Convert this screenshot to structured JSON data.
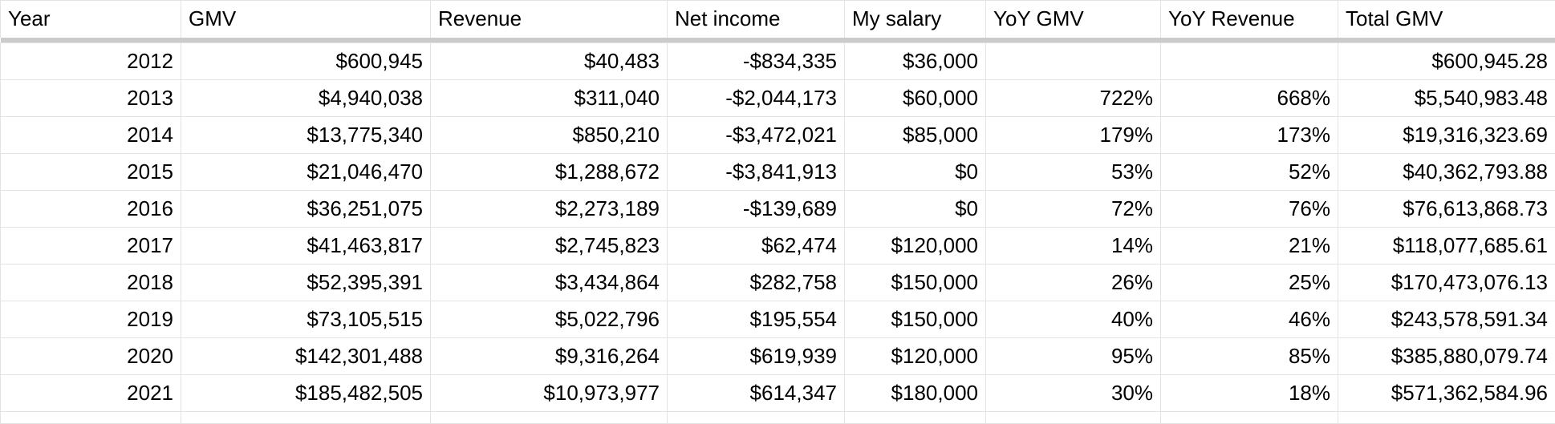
{
  "table": {
    "headers": [
      "Year",
      "GMV",
      "Revenue",
      "Net income",
      "My salary",
      "YoY GMV",
      "YoY Revenue",
      "Total GMV"
    ],
    "rows": [
      [
        "2012",
        "$600,945",
        "$40,483",
        "-$834,335",
        "$36,000",
        "",
        "",
        "$600,945.28"
      ],
      [
        "2013",
        "$4,940,038",
        "$311,040",
        "-$2,044,173",
        "$60,000",
        "722%",
        "668%",
        "$5,540,983.48"
      ],
      [
        "2014",
        "$13,775,340",
        "$850,210",
        "-$3,472,021",
        "$85,000",
        "179%",
        "173%",
        "$19,316,323.69"
      ],
      [
        "2015",
        "$21,046,470",
        "$1,288,672",
        "-$3,841,913",
        "$0",
        "53%",
        "52%",
        "$40,362,793.88"
      ],
      [
        "2016",
        "$36,251,075",
        "$2,273,189",
        "-$139,689",
        "$0",
        "72%",
        "76%",
        "$76,613,868.73"
      ],
      [
        "2017",
        "$41,463,817",
        "$2,745,823",
        "$62,474",
        "$120,000",
        "14%",
        "21%",
        "$118,077,685.61"
      ],
      [
        "2018",
        "$52,395,391",
        "$3,434,864",
        "$282,758",
        "$150,000",
        "26%",
        "25%",
        "$170,473,076.13"
      ],
      [
        "2019",
        "$73,105,515",
        "$5,022,796",
        "$195,554",
        "$150,000",
        "40%",
        "46%",
        "$243,578,591.34"
      ],
      [
        "2020",
        "$142,301,488",
        "$9,316,264",
        "$619,939",
        "$120,000",
        "95%",
        "85%",
        "$385,880,079.74"
      ],
      [
        "2021",
        "$185,482,505",
        "$10,973,977",
        "$614,347",
        "$180,000",
        "30%",
        "18%",
        "$571,362,584.96"
      ]
    ]
  }
}
